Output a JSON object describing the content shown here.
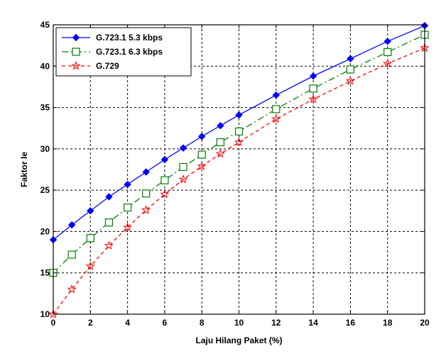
{
  "chart_data": {
    "type": "line",
    "xlabel": "Laju Hilang Paket (%)",
    "ylabel": "Faktor Ie",
    "xlim": [
      0,
      20
    ],
    "ylim": [
      10,
      45
    ],
    "xticks": [
      0,
      2,
      4,
      6,
      8,
      10,
      12,
      14,
      16,
      18,
      20
    ],
    "yticks": [
      10,
      15,
      20,
      25,
      30,
      35,
      40,
      45
    ],
    "grid": true,
    "legend_position": "top-left",
    "series": [
      {
        "name": "G.723.1 5.3 kbps",
        "color": "#0000ff",
        "marker": "diamond",
        "line_style": "solid",
        "x": [
          0,
          1,
          2,
          3,
          4,
          5,
          6,
          7,
          8,
          9,
          10,
          12,
          14,
          16,
          18,
          20
        ],
        "y": [
          19.0,
          20.8,
          22.5,
          24.2,
          25.7,
          27.2,
          28.7,
          30.1,
          31.5,
          32.8,
          34.1,
          36.5,
          38.8,
          40.9,
          43.0,
          44.9
        ]
      },
      {
        "name": "G.723.1 6.3 kbps",
        "color": "#008000",
        "marker": "square",
        "line_style": "dashdot",
        "x": [
          0,
          1,
          2,
          3,
          4,
          5,
          6,
          7,
          8,
          9,
          10,
          12,
          14,
          16,
          18,
          20
        ],
        "y": [
          15.0,
          17.2,
          19.2,
          21.1,
          22.9,
          24.6,
          26.2,
          27.8,
          29.3,
          30.8,
          32.1,
          34.8,
          37.3,
          39.6,
          41.7,
          43.8
        ]
      },
      {
        "name": "G.729",
        "color": "#ff0000",
        "marker": "star",
        "line_style": "dashed",
        "x": [
          0,
          1,
          2,
          3,
          4,
          5,
          6,
          7,
          8,
          9,
          10,
          12,
          14,
          16,
          18,
          20
        ],
        "y": [
          10.0,
          13.0,
          15.8,
          18.3,
          20.5,
          22.6,
          24.5,
          26.3,
          27.9,
          29.4,
          30.8,
          33.6,
          36.0,
          38.2,
          40.3,
          42.2
        ]
      }
    ]
  }
}
